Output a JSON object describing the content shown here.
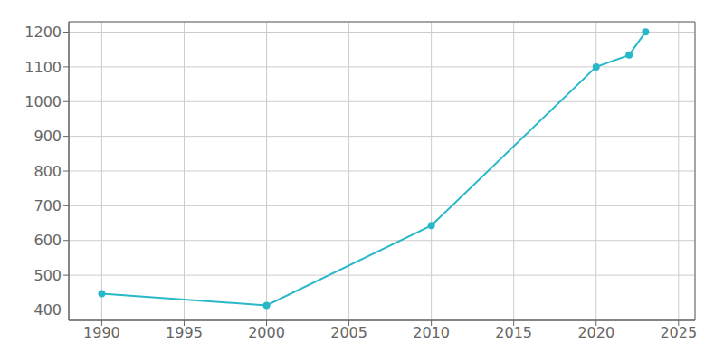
{
  "chart_data": {
    "type": "line",
    "x": [
      1990,
      2000,
      2010,
      2020,
      2022,
      2023
    ],
    "values": [
      447,
      413,
      643,
      1100,
      1134,
      1201
    ],
    "color": "#29b8c8",
    "marker": "circle",
    "xlim": [
      1988,
      2026
    ],
    "ylim": [
      370,
      1230
    ],
    "xticks": [
      1990,
      1995,
      2000,
      2005,
      2010,
      2015,
      2020,
      2025
    ],
    "yticks": [
      400,
      500,
      600,
      700,
      800,
      900,
      1000,
      1100,
      1200
    ],
    "grid": true
  }
}
